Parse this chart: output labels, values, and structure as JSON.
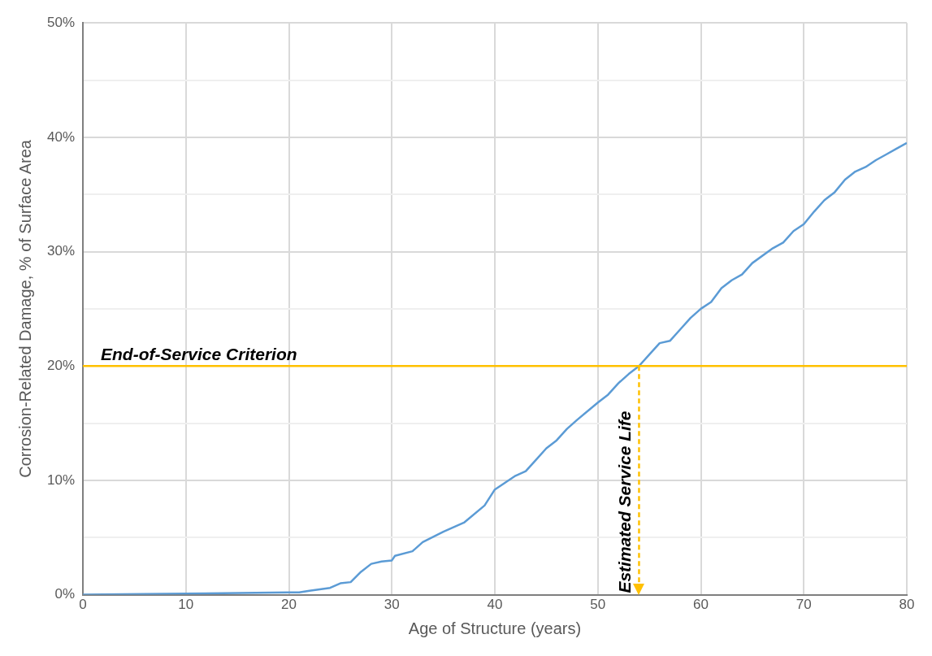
{
  "chart_data": {
    "type": "line",
    "xlabel": "Age of Structure (years)",
    "ylabel": "Corrosion-Related Damage, % of Surface Area",
    "x": [
      0,
      10,
      20,
      21,
      22,
      24,
      25,
      26,
      27,
      28,
      29,
      30,
      30.3,
      32,
      33,
      35,
      37,
      39,
      40,
      41,
      42,
      43,
      44,
      45,
      46,
      47,
      48,
      50,
      51,
      52,
      53,
      54,
      55,
      56,
      57,
      58,
      59,
      60,
      61,
      62,
      63,
      64,
      65,
      67,
      68,
      69,
      70,
      71,
      72,
      73,
      74,
      75,
      76,
      77,
      78,
      79,
      80
    ],
    "series": [
      {
        "color": "#5b9bd5",
        "values": [
          0,
          0.1,
          0.2,
          0.2,
          0.35,
          0.6,
          1.0,
          1.1,
          2.0,
          2.7,
          2.9,
          3.0,
          3.4,
          3.8,
          4.6,
          5.5,
          6.3,
          7.8,
          9.2,
          9.8,
          10.4,
          10.8,
          11.8,
          12.8,
          13.5,
          14.5,
          15.3,
          16.8,
          17.5,
          18.5,
          19.3,
          20.0,
          21.0,
          22.0,
          22.2,
          23.2,
          24.2,
          25.0,
          25.6,
          26.8,
          27.5,
          28.0,
          29.0,
          30.3,
          30.8,
          31.8,
          32.4,
          33.5,
          34.5,
          35.2,
          36.3,
          37.0,
          37.4,
          38.0,
          38.5,
          39.0,
          39.5
        ]
      }
    ],
    "xlim": [
      0,
      80
    ],
    "xticks": [
      0,
      10,
      20,
      30,
      40,
      50,
      60,
      70,
      80
    ],
    "ylim": [
      0,
      50
    ],
    "yticks": [
      {
        "value": 0,
        "label": "0%"
      },
      {
        "value": 5,
        "label": null
      },
      {
        "value": 10,
        "label": "10%"
      },
      {
        "value": 15,
        "label": null
      },
      {
        "value": 20,
        "label": "20%"
      },
      {
        "value": 25,
        "label": null
      },
      {
        "value": 30,
        "label": "30%"
      },
      {
        "value": 35,
        "label": null
      },
      {
        "value": 40,
        "label": "40%"
      },
      {
        "value": 45,
        "label": null
      },
      {
        "value": 50,
        "label": "50%"
      }
    ],
    "grid": true,
    "legend": false,
    "marker": "none",
    "line_style": "solid",
    "ref_lines": [
      {
        "axis": "y",
        "value": 20,
        "label": "End-of-Service Criterion",
        "color": "#ffc000",
        "line_style": "solid"
      },
      {
        "axis": "x",
        "value": 54,
        "label": "Estimated Service Life",
        "color": "#ffc000",
        "line_style": "dashed"
      }
    ]
  }
}
